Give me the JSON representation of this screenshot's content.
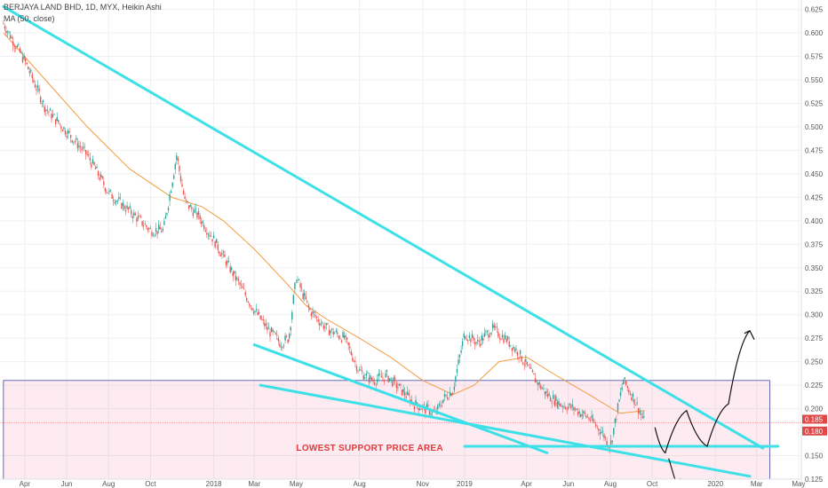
{
  "header": {
    "symbol_line": "BERJAYA LAND BHD, 1D, MYX, Heikin Ashi",
    "indicator_line": "MA (50, close)"
  },
  "chart_data": {
    "type": "candlestick",
    "xlabel": "",
    "ylabel": "",
    "ylim": [
      0.125,
      0.635
    ],
    "y_ticks": [
      "0.625",
      "0.600",
      "0.575",
      "0.550",
      "0.525",
      "0.500",
      "0.475",
      "0.450",
      "0.425",
      "0.400",
      "0.375",
      "0.350",
      "0.325",
      "0.300",
      "0.275",
      "0.250",
      "0.225",
      "0.200",
      "0.150",
      "0.125"
    ],
    "x_ticks": [
      "Apr",
      "Jun",
      "Aug",
      "Oct",
      "2018",
      "Mar",
      "May",
      "Aug",
      "Nov",
      "2019",
      "Apr",
      "Jun",
      "Aug",
      "Oct",
      "2020",
      "Mar",
      "May"
    ],
    "price_badges": [
      {
        "label": "0.185",
        "value": 0.185,
        "color": "#e04848"
      },
      {
        "label": "0.180",
        "value": 0.18,
        "color": "#e04848"
      }
    ],
    "series": [
      {
        "name": "price",
        "color_up": "#26a69a",
        "color_down": "#ef5350",
        "x": [
          "2017-03-01",
          "2017-04-01",
          "2017-05-01",
          "2017-06-01",
          "2017-07-01",
          "2017-08-01",
          "2017-09-01",
          "2017-10-01",
          "2017-10-20",
          "2017-11-08",
          "2017-11-20",
          "2017-12-10",
          "2018-01-01",
          "2018-02-01",
          "2018-03-01",
          "2018-03-20",
          "2018-04-08",
          "2018-04-20",
          "2018-05-01",
          "2018-05-20",
          "2018-06-15",
          "2018-07-10",
          "2018-08-01",
          "2018-08-20",
          "2018-09-10",
          "2018-10-01",
          "2018-10-20",
          "2018-11-20",
          "2018-12-01",
          "2018-12-15",
          "2019-01-01",
          "2019-01-20",
          "2019-02-10",
          "2019-03-01",
          "2019-03-20",
          "2019-04-10",
          "2019-05-01",
          "2019-05-20",
          "2019-06-10",
          "2019-07-01",
          "2019-07-20",
          "2019-08-01",
          "2019-08-20",
          "2019-09-05",
          "2019-09-20"
        ],
        "values": [
          0.61,
          0.57,
          0.52,
          0.495,
          0.47,
          0.43,
          0.41,
          0.39,
          0.39,
          0.47,
          0.42,
          0.405,
          0.38,
          0.34,
          0.305,
          0.285,
          0.27,
          0.275,
          0.34,
          0.305,
          0.285,
          0.275,
          0.24,
          0.23,
          0.235,
          0.22,
          0.205,
          0.195,
          0.21,
          0.22,
          0.28,
          0.27,
          0.285,
          0.275,
          0.26,
          0.235,
          0.215,
          0.205,
          0.2,
          0.19,
          0.175,
          0.16,
          0.23,
          0.21,
          0.185
        ]
      },
      {
        "name": "MA (50, close)",
        "color": "#f39c40",
        "x": [
          "2017-03-01",
          "2017-05-01",
          "2017-07-01",
          "2017-09-01",
          "2017-11-01",
          "2017-12-15",
          "2018-01-15",
          "2018-03-01",
          "2018-04-15",
          "2018-05-15",
          "2018-06-15",
          "2018-08-01",
          "2018-09-15",
          "2018-11-01",
          "2018-12-15",
          "2019-01-15",
          "2019-02-20",
          "2019-04-01",
          "2019-05-15",
          "2019-07-01",
          "2019-08-15",
          "2019-09-20"
        ],
        "values": [
          0.6,
          0.55,
          0.5,
          0.455,
          0.425,
          0.415,
          0.4,
          0.37,
          0.335,
          0.31,
          0.295,
          0.275,
          0.255,
          0.23,
          0.215,
          0.225,
          0.25,
          0.255,
          0.235,
          0.215,
          0.195,
          0.198
        ]
      }
    ],
    "trendlines": [
      {
        "color": "#3ee0e8",
        "from": [
          "2017-03-01",
          0.628
        ],
        "to": [
          "2020-03-10",
          0.158
        ]
      },
      {
        "color": "#3ee0e8",
        "from": [
          "2018-03-01",
          0.268
        ],
        "to": [
          "2019-05-01",
          0.153
        ]
      },
      {
        "color": "#3ee0e8",
        "from": [
          "2018-03-10",
          0.225
        ],
        "to": [
          "2020-02-20",
          0.128
        ]
      },
      {
        "color": "#3ee0e8",
        "from": [
          "2019-01-01",
          0.16
        ],
        "to": [
          "2020-04-01",
          0.16
        ]
      }
    ],
    "support_zone": {
      "from_x": "2017-03-01",
      "to_x": "2020-03-20",
      "low": 0.125,
      "high": 0.23,
      "color": "#e91e63"
    },
    "annotation": {
      "text": "LOWEST SUPPORT PRICE AREA",
      "x": "2018-05-01",
      "y": 0.155
    },
    "projection_path": {
      "x": [
        "2019-10-05",
        "2019-10-20",
        "2019-11-20",
        "2019-12-20",
        "2020-01-20",
        "2020-02-20"
      ],
      "values": [
        0.18,
        0.153,
        0.198,
        0.16,
        0.205,
        0.283
      ]
    },
    "projection_down": {
      "x": [
        "2019-10-25",
        "2019-11-05"
      ],
      "values": [
        0.147,
        0.12
      ]
    }
  }
}
